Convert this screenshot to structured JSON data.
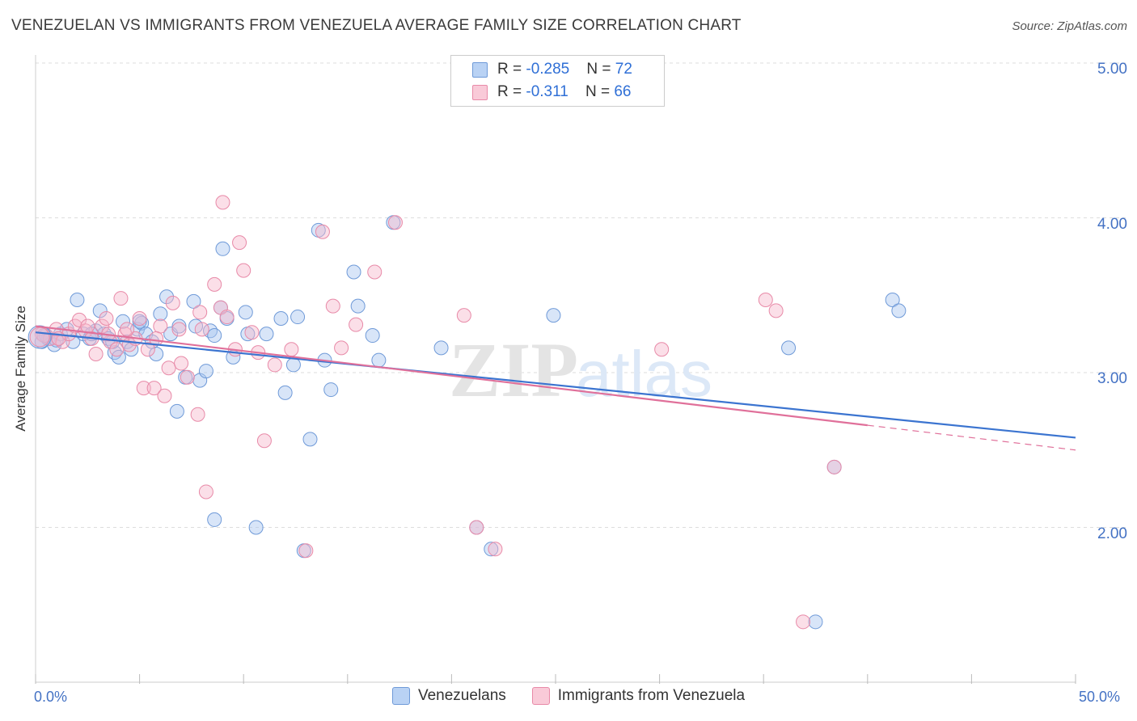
{
  "title": "VENEZUELAN VS IMMIGRANTS FROM VENEZUELA AVERAGE FAMILY SIZE CORRELATION CHART",
  "source": "Source: ZipAtlas.com",
  "watermark": {
    "zip": "ZIP",
    "atlas": "atlas"
  },
  "legend": {
    "r_label": "R = ",
    "n_label": "N = ",
    "rows": [
      {
        "r": "-0.285",
        "n": "72"
      },
      {
        "r": "-0.311",
        "n": "66"
      }
    ]
  },
  "colors": {
    "blue_fill": "#a8c6f0",
    "blue_stroke": "#6f9ad8",
    "blue_line": "#3b74d0",
    "pink_fill": "#f6b9cc",
    "pink_stroke": "#e88aa8",
    "pink_line": "#e0709a",
    "grid": "#dddddd",
    "tick_text": "#4472c4"
  },
  "chart_data": {
    "type": "scatter",
    "xlabel": "",
    "ylabel": "Average Family Size",
    "xlim": [
      0,
      50
    ],
    "ylim": [
      1.0,
      5.0
    ],
    "x_tick_labels": [
      "0.0%",
      "50.0%"
    ],
    "y_ticks": [
      2.0,
      3.0,
      4.0,
      5.0
    ],
    "y_tick_labels": [
      "2.00",
      "3.00",
      "4.00",
      "5.00"
    ],
    "grid": true,
    "legend_position": "bottom",
    "series": [
      {
        "name": "Venezuelans",
        "color": "#a8c6f0",
        "trend": {
          "x": [
            0,
            50
          ],
          "y": [
            3.26,
            2.58
          ]
        },
        "points": [
          [
            0.3,
            3.2
          ],
          [
            0.6,
            3.22
          ],
          [
            0.9,
            3.18
          ],
          [
            1.2,
            3.25
          ],
          [
            1.5,
            3.28
          ],
          [
            1.8,
            3.2
          ],
          [
            2.0,
            3.47
          ],
          [
            2.3,
            3.25
          ],
          [
            2.6,
            3.22
          ],
          [
            2.9,
            3.27
          ],
          [
            3.1,
            3.4
          ],
          [
            3.3,
            3.25
          ],
          [
            3.5,
            3.22
          ],
          [
            3.8,
            3.13
          ],
          [
            4.0,
            3.1
          ],
          [
            4.2,
            3.33
          ],
          [
            4.4,
            3.2
          ],
          [
            4.6,
            3.15
          ],
          [
            4.9,
            3.28
          ],
          [
            5.1,
            3.32
          ],
          [
            5.3,
            3.25
          ],
          [
            5.6,
            3.2
          ],
          [
            5.8,
            3.12
          ],
          [
            6.0,
            3.38
          ],
          [
            6.3,
            3.49
          ],
          [
            6.5,
            3.25
          ],
          [
            6.8,
            2.75
          ],
          [
            7.2,
            2.97
          ],
          [
            7.6,
            3.46
          ],
          [
            7.7,
            3.3
          ],
          [
            7.9,
            2.95
          ],
          [
            8.2,
            3.01
          ],
          [
            8.4,
            3.27
          ],
          [
            8.6,
            3.24
          ],
          [
            8.9,
            3.42
          ],
          [
            9.0,
            3.8
          ],
          [
            9.5,
            3.1
          ],
          [
            10.1,
            3.39
          ],
          [
            10.2,
            3.25
          ],
          [
            10.6,
            2.0
          ],
          [
            11.1,
            3.25
          ],
          [
            11.8,
            3.35
          ],
          [
            12.0,
            2.87
          ],
          [
            12.4,
            3.05
          ],
          [
            12.6,
            3.36
          ],
          [
            13.2,
            2.57
          ],
          [
            13.6,
            3.92
          ],
          [
            13.9,
            3.08
          ],
          [
            14.2,
            2.89
          ],
          [
            15.3,
            3.65
          ],
          [
            15.5,
            3.43
          ],
          [
            16.2,
            3.24
          ],
          [
            16.5,
            3.08
          ],
          [
            17.2,
            3.97
          ],
          [
            19.5,
            3.16
          ],
          [
            21.2,
            2.0
          ],
          [
            21.9,
            1.86
          ],
          [
            24.9,
            3.37
          ],
          [
            36.2,
            3.16
          ],
          [
            37.5,
            1.39
          ],
          [
            38.4,
            2.39
          ],
          [
            41.2,
            3.47
          ],
          [
            41.5,
            3.4
          ],
          [
            8.6,
            2.05
          ],
          [
            12.9,
            1.85
          ],
          [
            5.0,
            3.33
          ],
          [
            3.7,
            3.2
          ],
          [
            1.0,
            3.21
          ],
          [
            2.7,
            3.25
          ],
          [
            6.9,
            3.3
          ],
          [
            9.2,
            3.35
          ],
          [
            0.5,
            3.24
          ]
        ]
      },
      {
        "name": "Immigrants from Venezuela",
        "color": "#f6b9cc",
        "trend": {
          "x": [
            0,
            40
          ],
          "y": [
            3.3,
            2.66
          ]
        },
        "trend_dashed": {
          "x": [
            40,
            50
          ],
          "y": [
            2.66,
            2.5
          ]
        },
        "points": [
          [
            0.3,
            3.25
          ],
          [
            0.7,
            3.22
          ],
          [
            1.0,
            3.28
          ],
          [
            1.3,
            3.2
          ],
          [
            1.6,
            3.25
          ],
          [
            1.9,
            3.3
          ],
          [
            2.1,
            3.34
          ],
          [
            2.4,
            3.27
          ],
          [
            2.7,
            3.22
          ],
          [
            2.9,
            3.12
          ],
          [
            3.2,
            3.3
          ],
          [
            3.4,
            3.35
          ],
          [
            3.6,
            3.2
          ],
          [
            3.9,
            3.15
          ],
          [
            4.1,
            3.48
          ],
          [
            4.3,
            3.25
          ],
          [
            4.5,
            3.18
          ],
          [
            4.8,
            3.22
          ],
          [
            5.0,
            3.35
          ],
          [
            5.2,
            2.9
          ],
          [
            5.4,
            3.15
          ],
          [
            5.7,
            2.9
          ],
          [
            6.0,
            3.3
          ],
          [
            6.2,
            2.85
          ],
          [
            6.4,
            3.03
          ],
          [
            6.6,
            3.45
          ],
          [
            7.0,
            3.06
          ],
          [
            7.3,
            2.97
          ],
          [
            7.8,
            2.73
          ],
          [
            8.0,
            3.28
          ],
          [
            8.2,
            2.23
          ],
          [
            8.6,
            3.57
          ],
          [
            8.9,
            3.42
          ],
          [
            9.0,
            4.1
          ],
          [
            9.2,
            3.36
          ],
          [
            9.6,
            3.15
          ],
          [
            9.8,
            3.84
          ],
          [
            10.0,
            3.66
          ],
          [
            10.4,
            3.26
          ],
          [
            10.7,
            3.13
          ],
          [
            11.0,
            2.56
          ],
          [
            11.5,
            3.05
          ],
          [
            12.3,
            3.15
          ],
          [
            13.0,
            1.85
          ],
          [
            13.8,
            3.91
          ],
          [
            14.3,
            3.43
          ],
          [
            14.7,
            3.16
          ],
          [
            15.4,
            3.31
          ],
          [
            16.3,
            3.65
          ],
          [
            17.3,
            3.97
          ],
          [
            20.6,
            3.37
          ],
          [
            21.2,
            2.0
          ],
          [
            22.1,
            1.86
          ],
          [
            30.1,
            3.15
          ],
          [
            35.1,
            3.47
          ],
          [
            35.6,
            3.4
          ],
          [
            36.9,
            1.39
          ],
          [
            38.4,
            2.39
          ],
          [
            1.1,
            3.22
          ],
          [
            2.5,
            3.3
          ],
          [
            3.5,
            3.25
          ],
          [
            4.4,
            3.28
          ],
          [
            6.9,
            3.28
          ],
          [
            7.9,
            3.39
          ],
          [
            0.4,
            3.24
          ],
          [
            5.8,
            3.22
          ]
        ]
      }
    ]
  }
}
